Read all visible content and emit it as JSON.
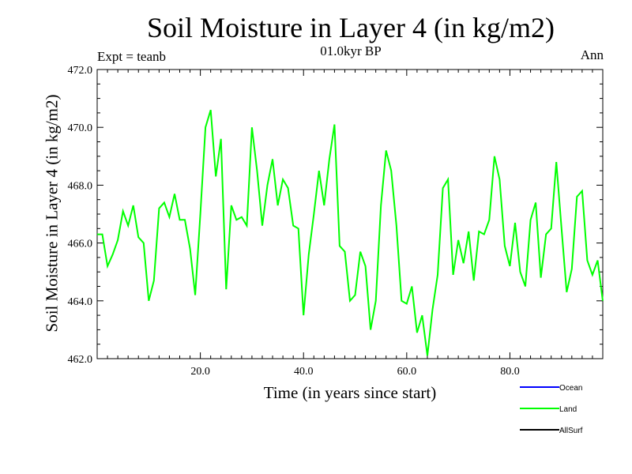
{
  "page": {
    "title": "Soil Moisture in Layer 4 (in kg/m2)",
    "subtitle": "01.0kyr BP",
    "expt_label": "Expt = teanb",
    "period_label": "Ann"
  },
  "chart_data": {
    "type": "line",
    "title": "Soil Moisture in Layer 4 (in kg/m2)",
    "subtitle": "01.0kyr BP",
    "xlabel": "Time (in years since start)",
    "ylabel": "Soil Moisture in Layer 4 (in kg/m2)",
    "xlim": [
      0,
      98
    ],
    "ylim": [
      462.0,
      472.0
    ],
    "x_ticks": [
      20,
      40,
      60,
      80
    ],
    "x_tick_labels": [
      "20.0",
      "40.0",
      "60.0",
      "80.0"
    ],
    "y_ticks": [
      462,
      464,
      466,
      468,
      470,
      472
    ],
    "y_tick_labels": [
      "462.0",
      "464.0",
      "466.0",
      "468.0",
      "470.0",
      "472.0"
    ],
    "grid": false,
    "legend_position": "bottom-right",
    "series": [
      {
        "name": "Land",
        "color": "#00ff00",
        "x": [
          0,
          1,
          2,
          3,
          4,
          5,
          6,
          7,
          8,
          9,
          10,
          11,
          12,
          13,
          14,
          15,
          16,
          17,
          18,
          19,
          20,
          21,
          22,
          23,
          24,
          25,
          26,
          27,
          28,
          29,
          30,
          31,
          32,
          33,
          34,
          35,
          36,
          37,
          38,
          39,
          40,
          41,
          42,
          43,
          44,
          45,
          46,
          47,
          48,
          49,
          50,
          51,
          52,
          53,
          54,
          55,
          56,
          57,
          58,
          59,
          60,
          61,
          62,
          63,
          64,
          65,
          66,
          67,
          68,
          69,
          70,
          71,
          72,
          73,
          74,
          75,
          76,
          77,
          78,
          79,
          80,
          81,
          82,
          83,
          84,
          85,
          86,
          87,
          88,
          89,
          90,
          91,
          92,
          93,
          94,
          95,
          96,
          97,
          98
        ],
        "values": [
          466.3,
          466.3,
          465.2,
          465.6,
          466.1,
          467.1,
          466.6,
          467.3,
          466.2,
          466.0,
          464.0,
          464.7,
          467.2,
          467.4,
          466.9,
          467.7,
          466.8,
          466.8,
          465.8,
          464.2,
          467.0,
          470.0,
          470.6,
          468.3,
          469.6,
          464.4,
          467.3,
          466.8,
          466.9,
          466.6,
          470.0,
          468.5,
          466.6,
          468.0,
          468.9,
          467.3,
          468.2,
          467.9,
          466.6,
          466.5,
          463.5,
          465.6,
          467.0,
          468.5,
          467.3,
          468.9,
          470.1,
          465.9,
          465.7,
          464.0,
          464.2,
          465.7,
          465.2,
          463.0,
          464.0,
          467.3,
          469.2,
          468.5,
          466.6,
          464.0,
          463.9,
          464.5,
          462.9,
          463.5,
          462.1,
          463.7,
          464.9,
          467.9,
          468.2,
          464.9,
          466.1,
          465.3,
          466.4,
          464.7,
          466.4,
          466.3,
          466.8,
          469.0,
          468.2,
          465.9,
          465.2,
          466.7,
          465.0,
          464.5,
          466.8,
          467.4,
          464.8,
          466.3,
          466.5,
          468.8,
          466.5,
          464.3,
          465.1,
          467.6,
          467.8,
          465.4,
          464.9,
          465.4,
          464.0
        ]
      }
    ],
    "legend": [
      {
        "name": "Ocean",
        "color": "#0000ff"
      },
      {
        "name": "Land",
        "color": "#00ff00"
      },
      {
        "name": "AllSurf",
        "color": "#000000"
      }
    ]
  }
}
